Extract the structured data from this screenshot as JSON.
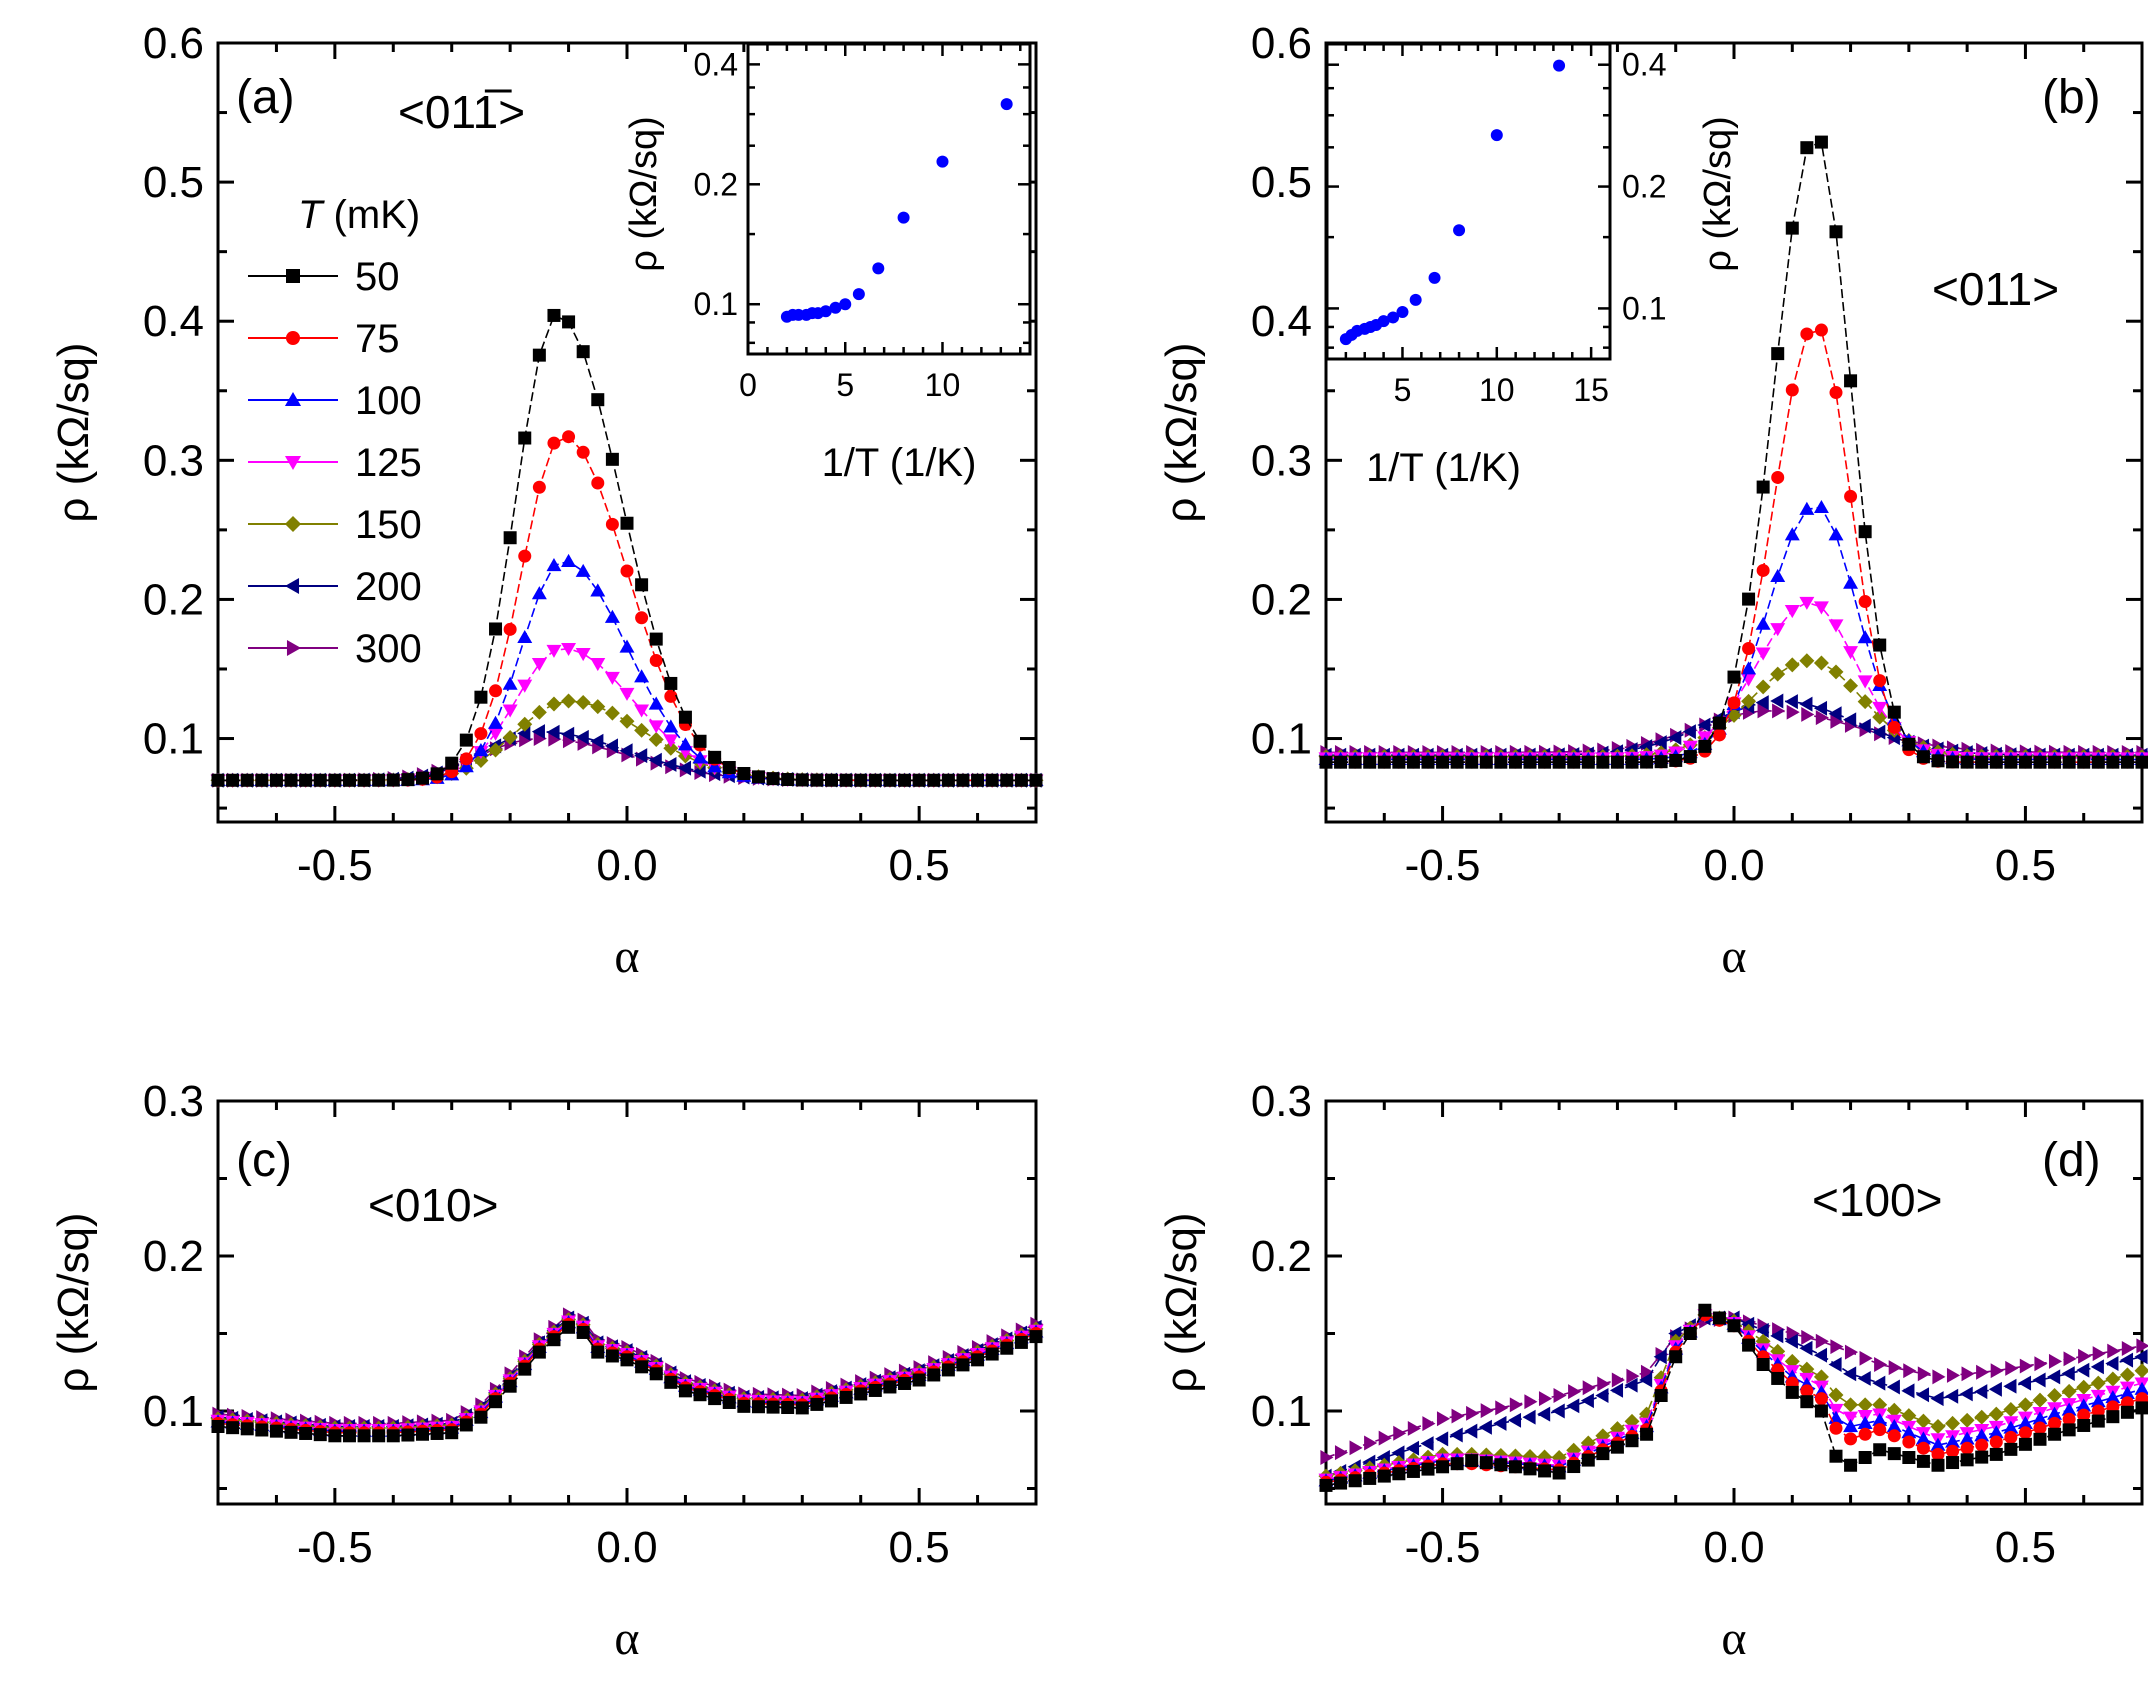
{
  "figure": {
    "background": "#ffffff",
    "series_styles": [
      {
        "label": "50",
        "color": "#000000",
        "marker": "square"
      },
      {
        "label": "75",
        "color": "#ff0000",
        "marker": "circle"
      },
      {
        "label": "100",
        "color": "#0000ff",
        "marker": "triangle-up"
      },
      {
        "label": "125",
        "color": "#ff00ff",
        "marker": "triangle-down"
      },
      {
        "label": "150",
        "color": "#808000",
        "marker": "diamond"
      },
      {
        "label": "200",
        "color": "#000080",
        "marker": "triangle-left"
      },
      {
        "label": "300",
        "color": "#800080",
        "marker": "triangle-right"
      }
    ],
    "inset_color": "#0000ff"
  },
  "chart_data": [
    {
      "id": "a",
      "type": "scatter",
      "panel_label": "(a)",
      "direction": "<011̅>",
      "xlabel": "α",
      "ylabel": "ρ (kΩ/sq)",
      "xlim": [
        -0.7,
        0.7
      ],
      "ylim": [
        0.04,
        0.6
      ],
      "xticks": [
        "-0.5",
        "0.0",
        "0.5"
      ],
      "yticks": [
        "0.1",
        "0.2",
        "0.3",
        "0.4",
        "0.5",
        "0.6"
      ],
      "legend": {
        "title_italic": "T",
        "title_rest": " (mK)",
        "position": "top-left"
      },
      "peak_model": "asymmetric-gaussian",
      "series": [
        {
          "name": "50",
          "baseline": 0.07,
          "x0": -0.12,
          "peak": 0.405,
          "wl": 0.07,
          "wr": 0.11
        },
        {
          "name": "75",
          "baseline": 0.07,
          "x0": -0.11,
          "peak": 0.318,
          "wl": 0.07,
          "wr": 0.11
        },
        {
          "name": "100",
          "baseline": 0.07,
          "x0": -0.11,
          "peak": 0.228,
          "wl": 0.07,
          "wr": 0.11
        },
        {
          "name": "125",
          "baseline": 0.07,
          "x0": -0.11,
          "peak": 0.165,
          "wl": 0.08,
          "wr": 0.12
        },
        {
          "name": "150",
          "baseline": 0.07,
          "x0": -0.1,
          "peak": 0.127,
          "wl": 0.09,
          "wr": 0.13
        },
        {
          "name": "200",
          "baseline": 0.07,
          "x0": -0.15,
          "peak": 0.105,
          "wl": 0.09,
          "wr": 0.15
        },
        {
          "name": "300",
          "baseline": 0.07,
          "x0": -0.15,
          "peak": 0.1,
          "wl": 0.1,
          "wr": 0.15
        }
      ],
      "inset": {
        "type": "scatter",
        "xlabel": "1/T (1/K)",
        "ylabel": "ρ (kΩ/sq)",
        "yscale": "log",
        "xlim": [
          0,
          14.5
        ],
        "ylim": [
          0.075,
          0.45
        ],
        "xticks": [
          "0",
          "5",
          "10"
        ],
        "yticks": [
          "0.1",
          "0.2",
          "0.4"
        ],
        "y_axis_side": "left",
        "position": "top-right",
        "x": [
          2.0,
          2.3,
          2.6,
          3.0,
          3.3,
          3.6,
          4.0,
          4.5,
          5.0,
          5.7,
          6.7,
          8.0,
          10.0,
          13.3
        ],
        "y": [
          0.093,
          0.094,
          0.094,
          0.094,
          0.095,
          0.095,
          0.096,
          0.098,
          0.1,
          0.106,
          0.123,
          0.165,
          0.228,
          0.318
        ]
      }
    },
    {
      "id": "b",
      "type": "scatter",
      "panel_label": "(b)",
      "direction": "<011>",
      "xlabel": "α",
      "ylabel": "ρ (kΩ/sq)",
      "xlim": [
        -0.7,
        0.7
      ],
      "ylim": [
        0.04,
        0.6
      ],
      "xticks": [
        "-0.5",
        "0.0",
        "0.5"
      ],
      "yticks": [
        "0.1",
        "0.2",
        "0.3",
        "0.4",
        "0.5",
        "0.6"
      ],
      "peak_model": "asymmetric-gaussian",
      "series": [
        {
          "name": "50",
          "baseline": 0.083,
          "x0": 0.14,
          "peak": 0.535,
          "wl": 0.07,
          "wr": 0.06
        },
        {
          "name": "75",
          "baseline": 0.083,
          "x0": 0.14,
          "peak": 0.398,
          "wl": 0.07,
          "wr": 0.06
        },
        {
          "name": "100",
          "baseline": 0.085,
          "x0": 0.14,
          "peak": 0.268,
          "wl": 0.08,
          "wr": 0.07
        },
        {
          "name": "125",
          "baseline": 0.086,
          "x0": 0.13,
          "peak": 0.198,
          "wl": 0.09,
          "wr": 0.08
        },
        {
          "name": "150",
          "baseline": 0.087,
          "x0": 0.13,
          "peak": 0.156,
          "wl": 0.1,
          "wr": 0.09
        },
        {
          "name": "200",
          "baseline": 0.088,
          "x0": 0.08,
          "peak": 0.127,
          "wl": 0.12,
          "wr": 0.13
        },
        {
          "name": "300",
          "baseline": 0.09,
          "x0": 0.06,
          "peak": 0.12,
          "wl": 0.12,
          "wr": 0.15
        }
      ],
      "inset": {
        "type": "scatter",
        "xlabel": "1/T (1/K)",
        "ylabel": "ρ (kΩ/sq)",
        "yscale": "log",
        "xlim": [
          1,
          16
        ],
        "ylim": [
          0.075,
          0.45
        ],
        "xticks": [
          "5",
          "10",
          "15"
        ],
        "yticks": [
          "0.1",
          "0.2",
          "0.4"
        ],
        "y_axis_side": "right",
        "position": "top-left",
        "x": [
          2.0,
          2.3,
          2.6,
          3.0,
          3.3,
          3.6,
          4.0,
          4.5,
          5.0,
          5.7,
          6.7,
          8.0,
          10.0,
          13.3
        ],
        "y": [
          0.084,
          0.086,
          0.088,
          0.089,
          0.09,
          0.091,
          0.093,
          0.095,
          0.098,
          0.105,
          0.119,
          0.156,
          0.268,
          0.398
        ]
      }
    },
    {
      "id": "c",
      "type": "scatter",
      "panel_label": "(c)",
      "direction": "<010>",
      "xlabel": "α",
      "ylabel": "ρ (kΩ/sq)",
      "xlim": [
        -0.7,
        0.7
      ],
      "ylim": [
        0.04,
        0.3
      ],
      "xticks": [
        "-0.5",
        "0.0",
        "0.5"
      ],
      "yticks": [
        "0.1",
        "0.2",
        "0.3"
      ],
      "shared_curve": {
        "x": [
          -0.7,
          -0.6,
          -0.5,
          -0.4,
          -0.3,
          -0.25,
          -0.2,
          -0.15,
          -0.1,
          -0.07,
          -0.05,
          0.0,
          0.05,
          0.1,
          0.2,
          0.3,
          0.4,
          0.5,
          0.6,
          0.7
        ],
        "y": [
          0.092,
          0.089,
          0.086,
          0.086,
          0.088,
          0.098,
          0.118,
          0.14,
          0.156,
          0.152,
          0.14,
          0.135,
          0.126,
          0.115,
          0.105,
          0.104,
          0.113,
          0.122,
          0.135,
          0.15
        ]
      },
      "series_offsets": [
        {
          "name": "50",
          "dy": -0.002
        },
        {
          "name": "75",
          "dy": 0.0
        },
        {
          "name": "100",
          "dy": 0.001
        },
        {
          "name": "125",
          "dy": 0.002
        },
        {
          "name": "150",
          "dy": 0.003
        },
        {
          "name": "200",
          "dy": 0.004
        },
        {
          "name": "300",
          "dy": 0.006
        }
      ]
    },
    {
      "id": "d",
      "type": "scatter",
      "panel_label": "(d)",
      "direction": "<100>",
      "xlabel": "α",
      "ylabel": "ρ (kΩ/sq)",
      "xlim": [
        -0.7,
        0.7
      ],
      "ylim": [
        0.04,
        0.3
      ],
      "xticks": [
        "-0.5",
        "0.0",
        "0.5"
      ],
      "yticks": [
        "0.1",
        "0.2",
        "0.3"
      ],
      "series": [
        {
          "name": "50",
          "x": [
            -0.7,
            -0.5,
            -0.45,
            -0.3,
            -0.15,
            -0.1,
            -0.05,
            0.0,
            0.05,
            0.1,
            0.15,
            0.18,
            0.2,
            0.25,
            0.35,
            0.45,
            0.55,
            0.7
          ],
          "y": [
            0.052,
            0.064,
            0.068,
            0.06,
            0.085,
            0.135,
            0.165,
            0.155,
            0.13,
            0.112,
            0.1,
            0.065,
            0.065,
            0.075,
            0.065,
            0.072,
            0.085,
            0.102
          ]
        },
        {
          "name": "75",
          "x": [
            -0.7,
            -0.5,
            -0.45,
            -0.3,
            -0.15,
            -0.1,
            -0.05,
            0.0,
            0.05,
            0.1,
            0.15,
            0.18,
            0.2,
            0.25,
            0.35,
            0.45,
            0.55,
            0.7
          ],
          "y": [
            0.054,
            0.066,
            0.066,
            0.062,
            0.088,
            0.138,
            0.162,
            0.155,
            0.135,
            0.118,
            0.108,
            0.085,
            0.082,
            0.088,
            0.072,
            0.08,
            0.092,
            0.108
          ]
        },
        {
          "name": "100",
          "x": [
            -0.7,
            -0.5,
            -0.45,
            -0.3,
            -0.15,
            -0.1,
            -0.05,
            0.0,
            0.05,
            0.1,
            0.15,
            0.18,
            0.2,
            0.25,
            0.35,
            0.45,
            0.55,
            0.7
          ],
          "y": [
            0.055,
            0.068,
            0.068,
            0.064,
            0.09,
            0.14,
            0.162,
            0.156,
            0.138,
            0.122,
            0.112,
            0.092,
            0.09,
            0.094,
            0.078,
            0.086,
            0.098,
            0.114
          ]
        },
        {
          "name": "125",
          "x": [
            -0.7,
            -0.5,
            -0.45,
            -0.3,
            -0.15,
            -0.1,
            -0.05,
            0.0,
            0.05,
            0.1,
            0.15,
            0.18,
            0.2,
            0.25,
            0.35,
            0.45,
            0.55,
            0.7
          ],
          "y": [
            0.056,
            0.069,
            0.069,
            0.065,
            0.092,
            0.142,
            0.162,
            0.157,
            0.14,
            0.126,
            0.116,
            0.098,
            0.096,
            0.098,
            0.082,
            0.09,
            0.102,
            0.118
          ]
        },
        {
          "name": "150",
          "x": [
            -0.7,
            -0.5,
            -0.45,
            -0.3,
            -0.15,
            -0.1,
            -0.05,
            0.0,
            0.05,
            0.1,
            0.15,
            0.18,
            0.2,
            0.25,
            0.35,
            0.45,
            0.55,
            0.7
          ],
          "y": [
            0.058,
            0.072,
            0.072,
            0.07,
            0.098,
            0.145,
            0.162,
            0.158,
            0.145,
            0.132,
            0.122,
            0.108,
            0.104,
            0.104,
            0.09,
            0.098,
            0.11,
            0.126
          ]
        },
        {
          "name": "200",
          "x": [
            -0.7,
            -0.5,
            -0.4,
            -0.3,
            -0.15,
            -0.1,
            -0.05,
            0.0,
            0.05,
            0.1,
            0.15,
            0.2,
            0.25,
            0.35,
            0.45,
            0.55,
            0.7
          ],
          "y": [
            0.058,
            0.082,
            0.092,
            0.1,
            0.12,
            0.15,
            0.16,
            0.16,
            0.152,
            0.145,
            0.136,
            0.124,
            0.118,
            0.108,
            0.114,
            0.122,
            0.135
          ]
        },
        {
          "name": "300",
          "x": [
            -0.7,
            -0.5,
            -0.4,
            -0.3,
            -0.15,
            -0.1,
            -0.05,
            0.0,
            0.05,
            0.1,
            0.15,
            0.2,
            0.25,
            0.35,
            0.45,
            0.55,
            0.7
          ],
          "y": [
            0.07,
            0.095,
            0.102,
            0.11,
            0.125,
            0.148,
            0.158,
            0.16,
            0.155,
            0.15,
            0.145,
            0.138,
            0.13,
            0.122,
            0.126,
            0.132,
            0.142
          ]
        }
      ]
    }
  ]
}
